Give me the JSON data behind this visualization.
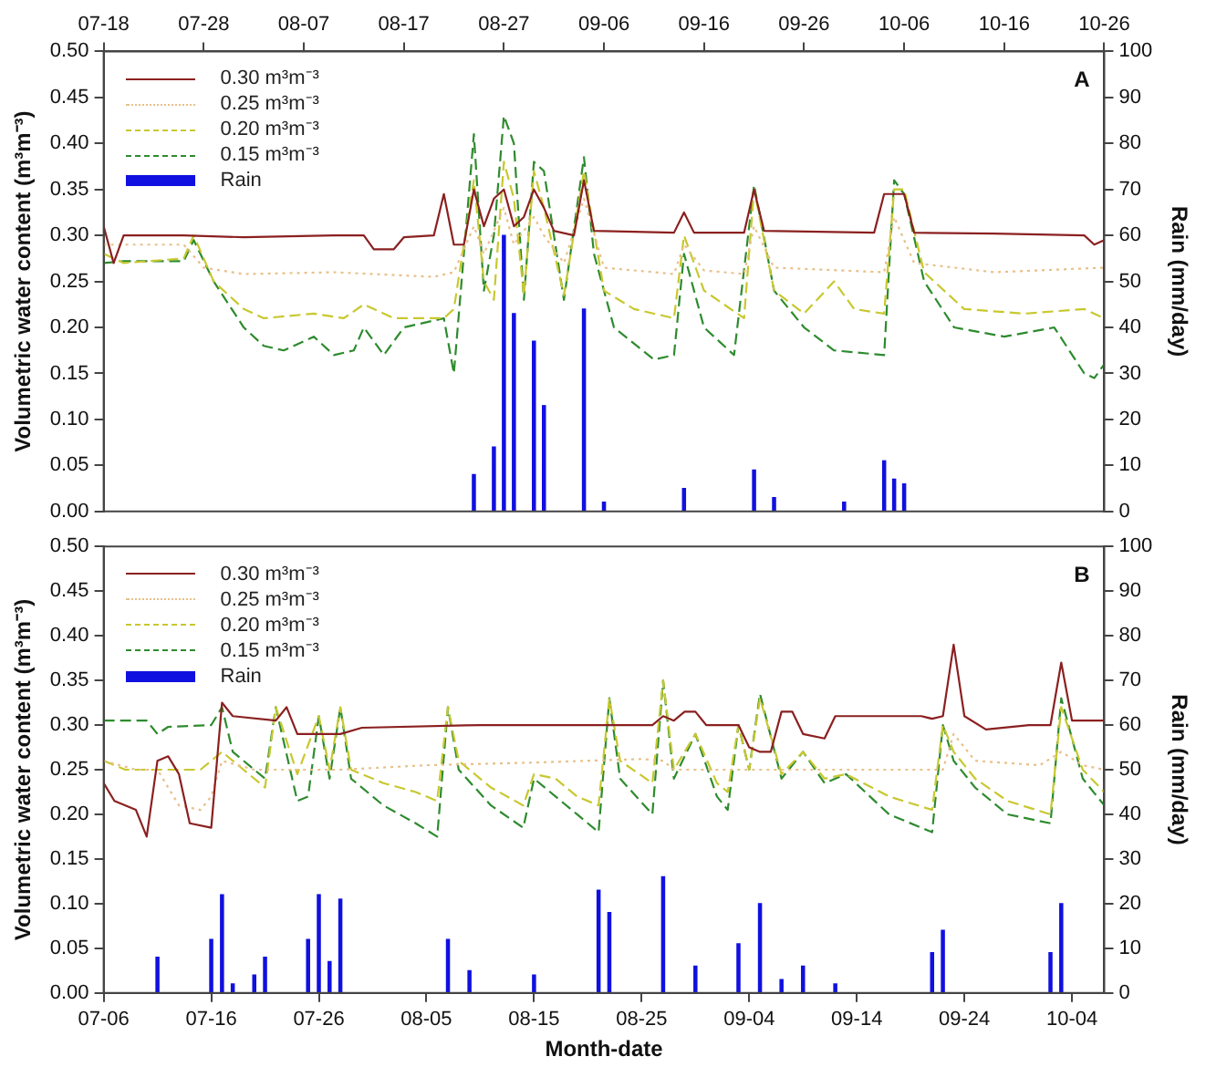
{
  "chart_data": [
    {
      "type": "line",
      "ylabel": "Volumetric water content (m³m⁻³)",
      "y2label": "Rain (mm/day)",
      "annotations": [
        "A"
      ],
      "legend": "top left",
      "grid": false,
      "xlim": [
        "--07-18",
        "--10-26"
      ],
      "xticks": [
        {
          "value": "--07-18",
          "label": "07-18"
        },
        {
          "value": "--07-28",
          "label": "07-28"
        },
        {
          "value": "--08-07",
          "label": "08-07"
        },
        {
          "value": "--08-17",
          "label": "08-17"
        },
        {
          "value": "--08-27",
          "label": "08-27"
        },
        {
          "value": "--09-06",
          "label": "09-06"
        },
        {
          "value": "--09-16",
          "label": "09-16"
        },
        {
          "value": "--09-26",
          "label": "09-26"
        },
        {
          "value": "--10-06",
          "label": "10-06"
        },
        {
          "value": "--10-16",
          "label": "10-16"
        },
        {
          "value": "--10-26",
          "label": "10-26"
        }
      ],
      "ylim": [
        0,
        0.5
      ],
      "yticks": [
        {
          "value": 0,
          "label": "0.00"
        },
        {
          "value": 0.05,
          "label": "0.05"
        },
        {
          "value": 0.1,
          "label": "0.10"
        },
        {
          "value": 0.15,
          "label": "0.15"
        },
        {
          "value": 0.2,
          "label": "0.20"
        },
        {
          "value": 0.25,
          "label": "0.25"
        },
        {
          "value": 0.3,
          "label": "0.30"
        },
        {
          "value": 0.35,
          "label": "0.35"
        },
        {
          "value": 0.4,
          "label": "0.40"
        },
        {
          "value": 0.45,
          "label": "0.45"
        },
        {
          "value": 0.5,
          "label": "0.50"
        }
      ],
      "y2lim": [
        0,
        100
      ],
      "y2ticks": [
        0,
        10,
        20,
        30,
        40,
        50,
        60,
        70,
        80,
        90,
        100
      ],
      "series": [
        {
          "name": "0.30 m³m⁻³",
          "color": "#8b2020",
          "line_style": "solid",
          "x": [
            "--07-18",
            "--07-19",
            "--07-20",
            "--07-26",
            "--08-01",
            "--08-10",
            "--08-13",
            "--08-14",
            "--08-16",
            "--08-17",
            "--08-20",
            "--08-21",
            "--08-22",
            "--08-23",
            "--08-24",
            "--08-25",
            "--08-26",
            "--08-27",
            "--08-28",
            "--08-29",
            "--08-30",
            "--08-31",
            "--09-01",
            "--09-03",
            "--09-04",
            "--09-05",
            "--09-13",
            "--09-14",
            "--09-15",
            "--09-20",
            "--09-21",
            "--09-22",
            "--10-03",
            "--10-04",
            "--10-05",
            "--10-06",
            "--10-07",
            "--10-15",
            "--10-24",
            "--10-25",
            "--10-26"
          ],
          "values": [
            0.31,
            0.27,
            0.3,
            0.3,
            0.298,
            0.3,
            0.3,
            0.285,
            0.285,
            0.298,
            0.3,
            0.345,
            0.29,
            0.29,
            0.35,
            0.31,
            0.34,
            0.35,
            0.31,
            0.32,
            0.35,
            0.33,
            0.305,
            0.3,
            0.36,
            0.305,
            0.303,
            0.325,
            0.303,
            0.303,
            0.35,
            0.305,
            0.303,
            0.345,
            0.345,
            0.345,
            0.303,
            0.302,
            0.3,
            0.29,
            0.295
          ]
        },
        {
          "name": "0.25 m³m⁻³",
          "color": "#e8c08a",
          "line_style": "dotted",
          "x": [
            "--07-18",
            "--07-20",
            "--07-26",
            "--07-28",
            "--08-01",
            "--08-10",
            "--08-20",
            "--08-22",
            "--08-24",
            "--08-25",
            "--08-27",
            "--08-28",
            "--08-30",
            "--08-31",
            "--09-02",
            "--09-04",
            "--09-06",
            "--09-13",
            "--09-14",
            "--09-16",
            "--09-20",
            "--09-21",
            "--09-23",
            "--10-04",
            "--10-05",
            "--10-07",
            "--10-15",
            "--10-26"
          ],
          "values": [
            0.29,
            0.29,
            0.29,
            0.265,
            0.258,
            0.26,
            0.255,
            0.26,
            0.31,
            0.28,
            0.33,
            0.29,
            0.32,
            0.3,
            0.27,
            0.34,
            0.265,
            0.258,
            0.29,
            0.262,
            0.258,
            0.31,
            0.265,
            0.26,
            0.32,
            0.27,
            0.26,
            0.265
          ]
        },
        {
          "name": "0.20 m³m⁻³",
          "color": "#c8c830",
          "line_style": "dashed",
          "x": [
            "--07-18",
            "--07-20",
            "--07-26",
            "--07-27",
            "--07-29",
            "--08-01",
            "--08-03",
            "--08-08",
            "--08-11",
            "--08-13",
            "--08-16",
            "--08-21",
            "--08-22",
            "--08-24",
            "--08-25",
            "--08-26",
            "--08-27",
            "--08-28",
            "--08-29",
            "--08-30",
            "--08-31",
            "--09-02",
            "--09-04",
            "--09-06",
            "--09-09",
            "--09-13",
            "--09-14",
            "--09-16",
            "--09-20",
            "--09-21",
            "--09-23",
            "--09-26",
            "--09-29",
            "--10-01",
            "--10-04",
            "--10-05",
            "--10-06",
            "--10-08",
            "--10-12",
            "--10-18",
            "--10-24",
            "--10-26"
          ],
          "values": [
            0.28,
            0.27,
            0.275,
            0.3,
            0.25,
            0.22,
            0.21,
            0.215,
            0.21,
            0.225,
            0.21,
            0.21,
            0.22,
            0.36,
            0.25,
            0.23,
            0.38,
            0.34,
            0.235,
            0.37,
            0.33,
            0.235,
            0.37,
            0.24,
            0.22,
            0.21,
            0.3,
            0.24,
            0.21,
            0.35,
            0.24,
            0.215,
            0.25,
            0.22,
            0.215,
            0.35,
            0.35,
            0.26,
            0.22,
            0.215,
            0.22,
            0.21
          ]
        },
        {
          "name": "0.15 m³m⁻³",
          "color": "#2e8b2e",
          "line_style": "dashed",
          "x": [
            "--07-18",
            "--07-20",
            "--07-26",
            "--07-27",
            "--07-29",
            "--08-01",
            "--08-03",
            "--08-05",
            "--08-08",
            "--08-10",
            "--08-12",
            "--08-13",
            "--08-15",
            "--08-17",
            "--08-21",
            "--08-22",
            "--08-24",
            "--08-25",
            "--08-26",
            "--08-27",
            "--08-28",
            "--08-29",
            "--08-30",
            "--08-31",
            "--09-02",
            "--09-04",
            "--09-05",
            "--09-07",
            "--09-11",
            "--09-13",
            "--09-14",
            "--09-16",
            "--09-19",
            "--09-21",
            "--09-23",
            "--09-26",
            "--09-29",
            "--10-04",
            "--10-05",
            "--10-06",
            "--10-08",
            "--10-11",
            "--10-16",
            "--10-21",
            "--10-24",
            "--10-25",
            "--10-26"
          ],
          "values": [
            0.27,
            0.272,
            0.272,
            0.295,
            0.25,
            0.2,
            0.18,
            0.175,
            0.19,
            0.17,
            0.175,
            0.2,
            0.17,
            0.2,
            0.21,
            0.15,
            0.41,
            0.24,
            0.3,
            0.43,
            0.4,
            0.23,
            0.38,
            0.37,
            0.23,
            0.385,
            0.28,
            0.2,
            0.165,
            0.17,
            0.28,
            0.2,
            0.17,
            0.355,
            0.24,
            0.2,
            0.175,
            0.17,
            0.36,
            0.345,
            0.25,
            0.2,
            0.19,
            0.2,
            0.15,
            0.145,
            0.16
          ]
        },
        {
          "name": "Rain",
          "type": "bar",
          "axis": "y2",
          "color": "#1010e0",
          "x": [
            "--08-24",
            "--08-26",
            "--08-27",
            "--08-28",
            "--08-30",
            "--08-31",
            "--09-04",
            "--09-06",
            "--09-14",
            "--09-21",
            "--09-23",
            "--09-30",
            "--10-04",
            "--10-05",
            "--10-06"
          ],
          "values": [
            8,
            14,
            60,
            43,
            37,
            23,
            44,
            2,
            5,
            9,
            3,
            2,
            11,
            7,
            6
          ]
        }
      ]
    },
    {
      "type": "line",
      "xlabel": "Month-date",
      "ylabel": "Volumetric water content (m³m⁻³)",
      "y2label": "Rain (mm/day)",
      "annotations": [
        "B"
      ],
      "legend": "top left",
      "grid": false,
      "xlim": [
        "--07-06",
        "--10-07"
      ],
      "xticks": [
        {
          "value": "--07-06",
          "label": "07-06"
        },
        {
          "value": "--07-16",
          "label": "07-16"
        },
        {
          "value": "--07-26",
          "label": "07-26"
        },
        {
          "value": "--08-05",
          "label": "08-05"
        },
        {
          "value": "--08-15",
          "label": "08-15"
        },
        {
          "value": "--08-25",
          "label": "08-25"
        },
        {
          "value": "--09-04",
          "label": "09-04"
        },
        {
          "value": "--09-14",
          "label": "09-14"
        },
        {
          "value": "--09-24",
          "label": "09-24"
        },
        {
          "value": "--10-04",
          "label": "10-04"
        }
      ],
      "ylim": [
        0,
        0.5
      ],
      "yticks": [
        {
          "value": 0,
          "label": "0.00"
        },
        {
          "value": 0.05,
          "label": "0.05"
        },
        {
          "value": 0.1,
          "label": "0.10"
        },
        {
          "value": 0.15,
          "label": "0.15"
        },
        {
          "value": 0.2,
          "label": "0.20"
        },
        {
          "value": 0.25,
          "label": "0.25"
        },
        {
          "value": 0.3,
          "label": "0.30"
        },
        {
          "value": 0.35,
          "label": "0.35"
        },
        {
          "value": 0.4,
          "label": "0.40"
        },
        {
          "value": 0.45,
          "label": "0.45"
        },
        {
          "value": 0.5,
          "label": "0.50"
        }
      ],
      "y2lim": [
        0,
        100
      ],
      "y2ticks": [
        0,
        10,
        20,
        30,
        40,
        50,
        60,
        70,
        80,
        90,
        100
      ],
      "series": [
        {
          "name": "0.30 m³m⁻³",
          "color": "#8b2020",
          "line_style": "solid",
          "x": [
            "--07-06",
            "--07-07",
            "--07-09",
            "--07-10",
            "--07-11",
            "--07-12",
            "--07-13",
            "--07-14",
            "--07-16",
            "--07-17",
            "--07-18",
            "--07-22",
            "--07-23",
            "--07-24",
            "--07-28",
            "--07-30",
            "--08-10",
            "--08-20",
            "--08-26",
            "--08-27",
            "--08-28",
            "--08-29",
            "--08-30",
            "--08-31",
            "--09-03",
            "--09-04",
            "--09-05",
            "--09-06",
            "--09-07",
            "--09-08",
            "--09-09",
            "--09-11",
            "--09-12",
            "--09-20",
            "--09-21",
            "--09-22",
            "--09-23",
            "--09-24",
            "--09-26",
            "--09-30",
            "--10-02",
            "--10-03",
            "--10-04",
            "--10-07"
          ],
          "values": [
            0.235,
            0.215,
            0.205,
            0.175,
            0.26,
            0.265,
            0.245,
            0.19,
            0.185,
            0.325,
            0.31,
            0.305,
            0.32,
            0.29,
            0.29,
            0.297,
            0.3,
            0.3,
            0.3,
            0.31,
            0.305,
            0.315,
            0.315,
            0.3,
            0.3,
            0.275,
            0.27,
            0.27,
            0.315,
            0.315,
            0.29,
            0.285,
            0.31,
            0.31,
            0.307,
            0.31,
            0.39,
            0.31,
            0.295,
            0.3,
            0.3,
            0.37,
            0.305,
            0.305
          ]
        },
        {
          "name": "0.25 m³m⁻³",
          "color": "#e8c08a",
          "line_style": "dotted",
          "x": [
            "--07-06",
            "--07-09",
            "--07-11",
            "--07-12",
            "--07-13",
            "--07-15",
            "--07-16",
            "--07-17",
            "--07-20",
            "--07-28",
            "--08-05",
            "--08-15",
            "--08-25",
            "--08-27",
            "--08-28",
            "--09-20",
            "--09-22",
            "--09-23",
            "--09-25",
            "--10-01",
            "--10-03",
            "--10-05",
            "--10-07"
          ],
          "values": [
            0.26,
            0.25,
            0.25,
            0.23,
            0.21,
            0.205,
            0.22,
            0.26,
            0.25,
            0.25,
            0.255,
            0.258,
            0.262,
            0.26,
            0.25,
            0.25,
            0.25,
            0.29,
            0.26,
            0.255,
            0.27,
            0.255,
            0.25
          ]
        },
        {
          "name": "0.20 m³m⁻³",
          "color": "#c8c830",
          "line_style": "dashed",
          "x": [
            "--07-06",
            "--07-08",
            "--07-10",
            "--07-15",
            "--07-17",
            "--07-19",
            "--07-21",
            "--07-22",
            "--07-24",
            "--07-26",
            "--07-27",
            "--07-28",
            "--07-29",
            "--08-01",
            "--08-04",
            "--08-06",
            "--08-07",
            "--08-08",
            "--08-11",
            "--08-14",
            "--08-15",
            "--08-17",
            "--08-19",
            "--08-21",
            "--08-22",
            "--08-23",
            "--08-26",
            "--08-27",
            "--08-28",
            "--08-30",
            "--09-01",
            "--09-02",
            "--09-03",
            "--09-04",
            "--09-05",
            "--09-07",
            "--09-09",
            "--09-11",
            "--09-13",
            "--09-17",
            "--09-21",
            "--09-22",
            "--09-23",
            "--09-25",
            "--09-28",
            "--10-02",
            "--10-03",
            "--10-05",
            "--10-07"
          ],
          "values": [
            0.26,
            0.25,
            0.25,
            0.25,
            0.27,
            0.25,
            0.23,
            0.32,
            0.245,
            0.31,
            0.25,
            0.32,
            0.25,
            0.235,
            0.225,
            0.215,
            0.32,
            0.26,
            0.23,
            0.21,
            0.245,
            0.24,
            0.22,
            0.21,
            0.33,
            0.26,
            0.235,
            0.35,
            0.25,
            0.29,
            0.235,
            0.225,
            0.3,
            0.25,
            0.33,
            0.245,
            0.27,
            0.24,
            0.245,
            0.22,
            0.205,
            0.3,
            0.27,
            0.24,
            0.215,
            0.2,
            0.32,
            0.25,
            0.225
          ]
        },
        {
          "name": "0.15 m³m⁻³",
          "color": "#2e8b2e",
          "line_style": "dashed",
          "x": [
            "--07-06",
            "--07-10",
            "--07-11",
            "--07-12",
            "--07-16",
            "--07-17",
            "--07-18",
            "--07-19",
            "--07-21",
            "--07-22",
            "--07-24",
            "--07-25",
            "--07-26",
            "--07-27",
            "--07-28",
            "--07-29",
            "--08-01",
            "--08-04",
            "--08-06",
            "--08-07",
            "--08-08",
            "--08-11",
            "--08-14",
            "--08-15",
            "--08-17",
            "--08-19",
            "--08-21",
            "--08-22",
            "--08-23",
            "--08-26",
            "--08-27",
            "--08-28",
            "--08-30",
            "--09-01",
            "--09-02",
            "--09-03",
            "--09-04",
            "--09-05",
            "--09-07",
            "--09-09",
            "--09-11",
            "--09-13",
            "--09-17",
            "--09-21",
            "--09-22",
            "--09-23",
            "--09-25",
            "--09-28",
            "--10-02",
            "--10-03",
            "--10-05",
            "--10-07"
          ],
          "values": [
            0.305,
            0.305,
            0.29,
            0.298,
            0.3,
            0.32,
            0.27,
            0.26,
            0.24,
            0.32,
            0.215,
            0.22,
            0.31,
            0.24,
            0.32,
            0.24,
            0.21,
            0.19,
            0.175,
            0.32,
            0.25,
            0.21,
            0.185,
            0.24,
            0.22,
            0.2,
            0.18,
            0.33,
            0.24,
            0.2,
            0.35,
            0.24,
            0.29,
            0.22,
            0.205,
            0.3,
            0.25,
            0.335,
            0.24,
            0.27,
            0.235,
            0.245,
            0.2,
            0.18,
            0.3,
            0.26,
            0.23,
            0.2,
            0.19,
            0.33,
            0.24,
            0.21
          ]
        },
        {
          "name": "Rain",
          "type": "bar",
          "axis": "y2",
          "color": "#1010e0",
          "x": [
            "--07-11",
            "--07-16",
            "--07-17",
            "--07-18",
            "--07-20",
            "--07-21",
            "--07-25",
            "--07-26",
            "--07-27",
            "--07-28",
            "--08-07",
            "--08-09",
            "--08-15",
            "--08-21",
            "--08-22",
            "--08-27",
            "--08-30",
            "--09-03",
            "--09-05",
            "--09-07",
            "--09-09",
            "--09-12",
            "--09-21",
            "--09-22",
            "--10-02",
            "--10-03"
          ],
          "values": [
            8,
            12,
            22,
            2,
            4,
            8,
            12,
            22,
            7,
            21,
            12,
            5,
            4,
            23,
            18,
            26,
            6,
            11,
            20,
            3,
            6,
            2,
            9,
            14,
            9,
            20
          ]
        }
      ]
    }
  ]
}
